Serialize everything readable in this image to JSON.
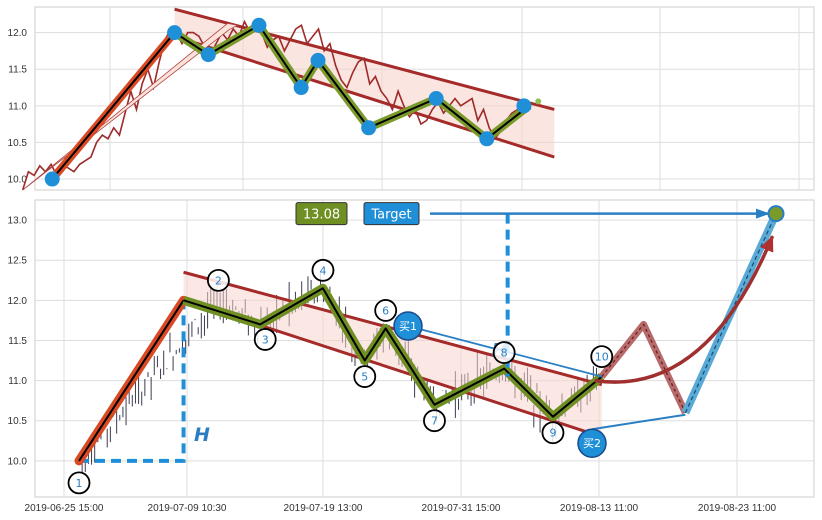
{
  "chart_data": [
    {
      "type": "line",
      "panel": "top",
      "ylim": [
        9.85,
        12.35
      ],
      "yticks": [
        "10.0",
        "10.5",
        "11.0",
        "11.5",
        "12.0"
      ],
      "grid": true,
      "price_series": [
        9.85,
        10.1,
        10.05,
        10.18,
        10.1,
        10.2,
        10.05,
        10.2,
        10.15,
        10.1,
        10.2,
        10.25,
        10.3,
        10.5,
        10.6,
        10.55,
        10.7,
        10.6,
        10.9,
        11.2,
        10.95,
        11.3,
        11.5,
        11.25,
        11.6,
        11.9,
        12.05,
        12.0,
        11.85,
        12.0,
        12.0,
        11.95,
        11.8,
        11.7,
        11.85,
        12.0,
        11.9,
        12.05,
        11.95,
        12.15,
        12.0,
        12.1,
        12.0,
        11.8,
        11.9,
        11.95,
        11.75,
        11.9,
        12.05,
        12.1,
        11.85,
        11.95,
        12.05,
        11.75,
        11.85,
        11.55,
        11.35,
        11.25,
        11.45,
        11.6,
        11.65,
        11.3,
        11.4,
        11.2,
        11.1,
        10.95,
        11.2,
        11.0,
        10.85,
        10.95,
        10.75,
        10.8,
        10.95,
        11.05,
        10.9,
        11.0,
        11.1,
        11.0,
        11.05,
        11.1,
        10.8,
        10.95,
        10.7,
        10.55,
        10.65,
        10.8,
        10.9,
        10.95,
        11.05,
        11.0
      ],
      "zigzag": [
        [
          0.5,
          10.0
        ],
        [
          15,
          12.0
        ],
        [
          19,
          11.7
        ],
        [
          25,
          12.1
        ],
        [
          30,
          11.25
        ],
        [
          32,
          11.62
        ],
        [
          38,
          10.7
        ],
        [
          46,
          11.1
        ],
        [
          52,
          10.55
        ],
        [
          57,
          11.0
        ]
      ],
      "channel_upper": [
        [
          15,
          12.32
        ],
        [
          60,
          10.95
        ]
      ],
      "channel_lower": [
        [
          15,
          11.95
        ],
        [
          60,
          10.3
        ]
      ],
      "arrow": [
        [
          -3,
          9.85
        ],
        [
          22,
          12.1
        ]
      ]
    },
    {
      "type": "line",
      "panel": "bottom",
      "ylim": [
        9.55,
        13.25
      ],
      "yticks": [
        "10.0",
        "10.5",
        "11.0",
        "11.5",
        "12.0",
        "12.5",
        "13.0"
      ],
      "xticks": [
        "2019-06-25 15:00",
        "2019-07-09 10:30",
        "2019-07-19 13:00",
        "2019-07-31 15:00",
        "2019-08-13 11:00",
        "2019-08-23 11:00"
      ],
      "grid": true,
      "zigzag": [
        [
          0,
          10.0
        ],
        [
          20,
          12.0
        ],
        [
          26,
          11.7
        ],
        [
          35,
          12.15
        ],
        [
          41,
          11.25
        ],
        [
          44,
          11.65
        ],
        [
          51,
          10.7
        ],
        [
          61,
          11.15
        ],
        [
          68,
          10.55
        ],
        [
          75,
          11.05
        ]
      ],
      "channel_upper": [
        [
          15,
          12.35
        ],
        [
          75,
          10.95
        ]
      ],
      "channel_lower": [
        [
          15,
          12.0
        ],
        [
          75,
          10.3
        ]
      ],
      "points": [
        {
          "label": "1",
          "x": 0,
          "y": 10.0
        },
        {
          "label": "2",
          "x": 20,
          "y": 12.0
        },
        {
          "label": "3",
          "x": 26,
          "y": 11.7
        },
        {
          "label": "4",
          "x": 35,
          "y": 12.15
        },
        {
          "label": "5",
          "x": 41,
          "y": 11.25
        },
        {
          "label": "6",
          "x": 44,
          "y": 11.65
        },
        {
          "label": "7",
          "x": 51,
          "y": 10.7
        },
        {
          "label": "8",
          "x": 61,
          "y": 11.15
        },
        {
          "label": "9",
          "x": 68,
          "y": 10.55
        },
        {
          "label": "10",
          "x": 75,
          "y": 11.05
        }
      ],
      "projection": [
        [
          75,
          11.05
        ],
        [
          81,
          11.7
        ],
        [
          87,
          10.6
        ],
        [
          100,
          13.08
        ]
      ],
      "target_value": "13.08",
      "target_label": "Target",
      "height_marker": "H",
      "buy_labels": [
        "买1",
        "买2"
      ]
    }
  ]
}
